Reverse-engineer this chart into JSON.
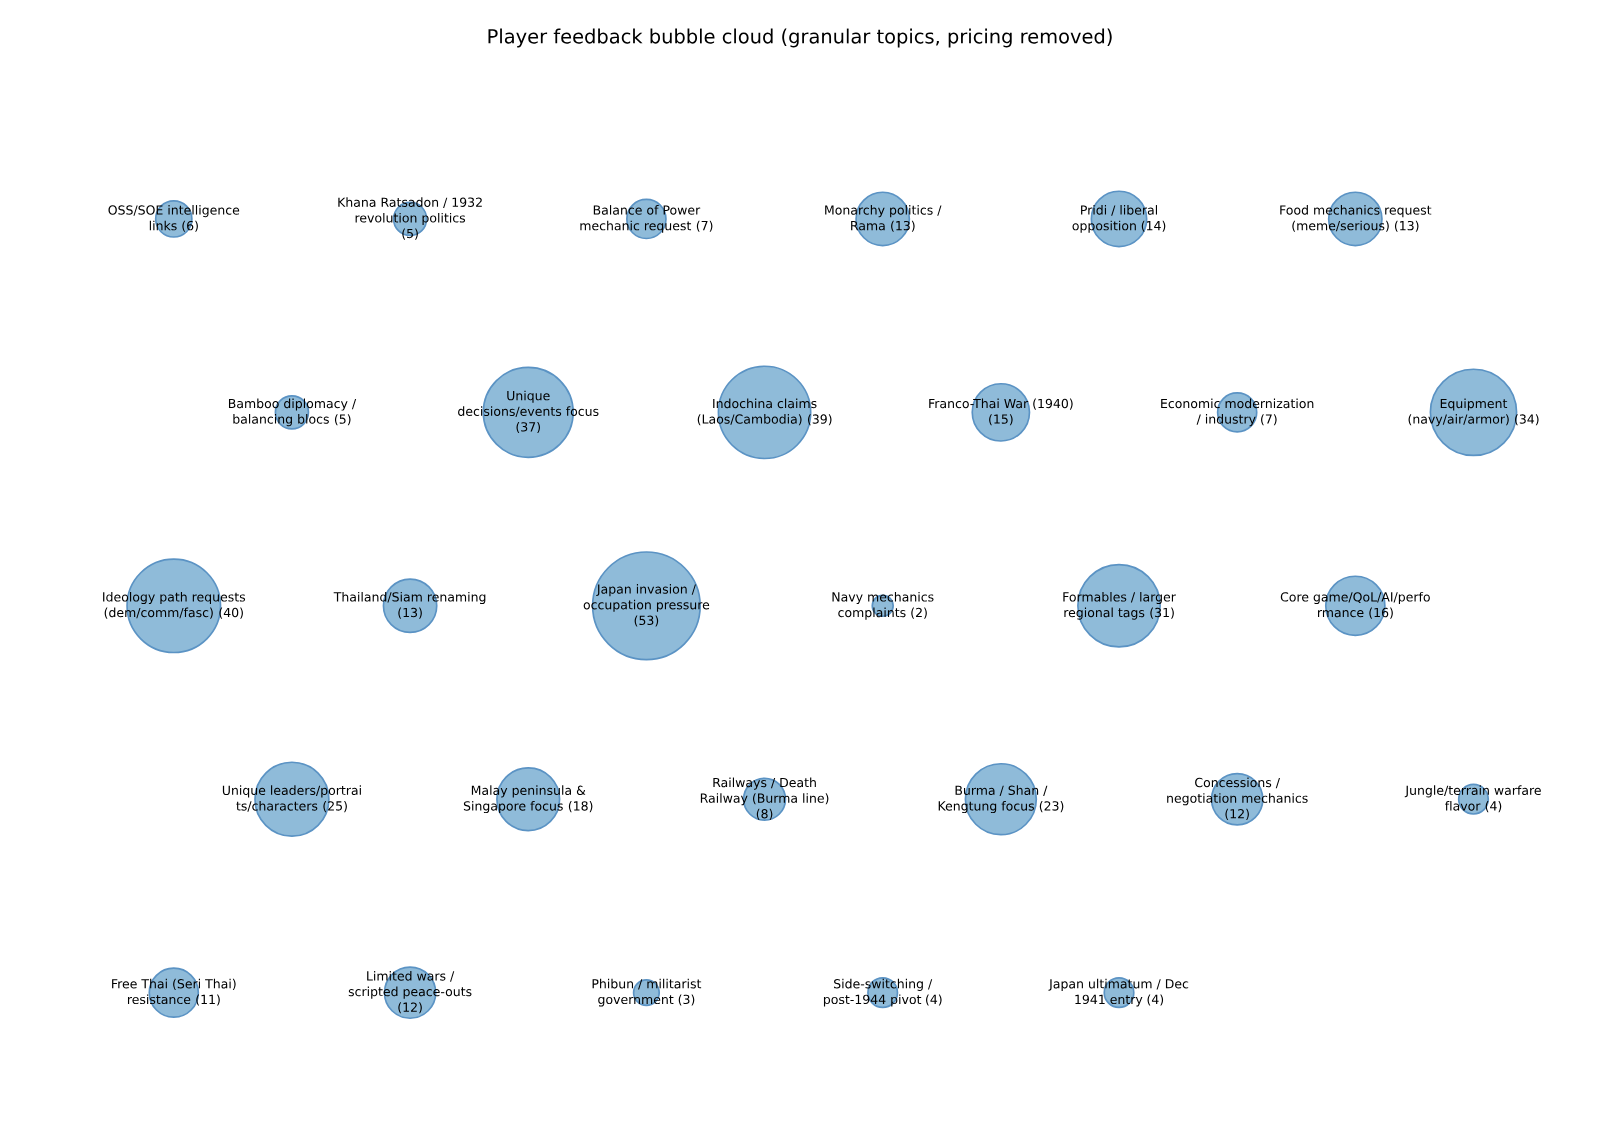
{
  "chart_data": {
    "type": "other",
    "title": "Player feedback bubble cloud (granular topics, pricing removed)",
    "categories": [
      "OSS/SOE intelligence\nlinks",
      "Khana Ratsadon / 1932\nrevolution politics\n",
      "Balance of Power\nmechanic request",
      "Monarchy politics /\nRama",
      "Pridi / liberal\nopposition",
      "Food mechanics request\n(meme/serious)",
      "Bamboo diplomacy /\nbalancing blocs",
      "Unique\ndecisions/events focus\n",
      "Indochina claims\n(Laos/Cambodia)",
      "Franco-Thai War (1940)\n",
      "Economic modernization\n/ industry",
      "Equipment\n(navy/air/armor)",
      "Ideology path requests\n(dem/comm/fasc)",
      "Thailand/Siam renaming\n",
      "Japan invasion /\noccupation pressure\n",
      "Navy mechanics\ncomplaints",
      "Formables / larger\nregional tags",
      "Core game/QoL/AI/perfo\nrmance",
      "Unique leaders/portrai\nts/characters",
      "Malay peninsula &\nSingapore focus",
      "Railways / Death\nRailway (Burma line)\n",
      "Burma / Shan /\nKengtung focus",
      "Concessions /\nnegotiation mechanics\n",
      "Jungle/terrain warfare\nflavor",
      "Free Thai (Seri Thai)\nresistance",
      "Limited wars /\nscripted peace-outs\n",
      "Phibun / militarist\ngovernment",
      "Side-switching /\npost-1944 pivot",
      "Japan ultimatum / Dec\n1941 entry"
    ],
    "values": [
      6,
      5,
      7,
      13,
      14,
      13,
      5,
      37,
      39,
      15,
      7,
      34,
      40,
      13,
      53,
      2,
      31,
      16,
      25,
      18,
      8,
      23,
      12,
      4,
      11,
      12,
      3,
      4,
      4
    ],
    "value_labels": [
      "(6)",
      "(5)",
      "(7)",
      "(13)",
      "(14)",
      "(13)",
      "(5)",
      "(37)",
      "(39)",
      "(15)",
      "(7)",
      "(34)",
      "(40)",
      "(13)",
      "(53)",
      "(2)",
      "(31)",
      "(16)",
      "(25)",
      "(18)",
      "(8)",
      "(23)",
      "(12)",
      "(4)",
      "(11)",
      "(12)",
      "(3)",
      "(4)",
      "(4)"
    ],
    "color": "#8fbbd9"
  }
}
